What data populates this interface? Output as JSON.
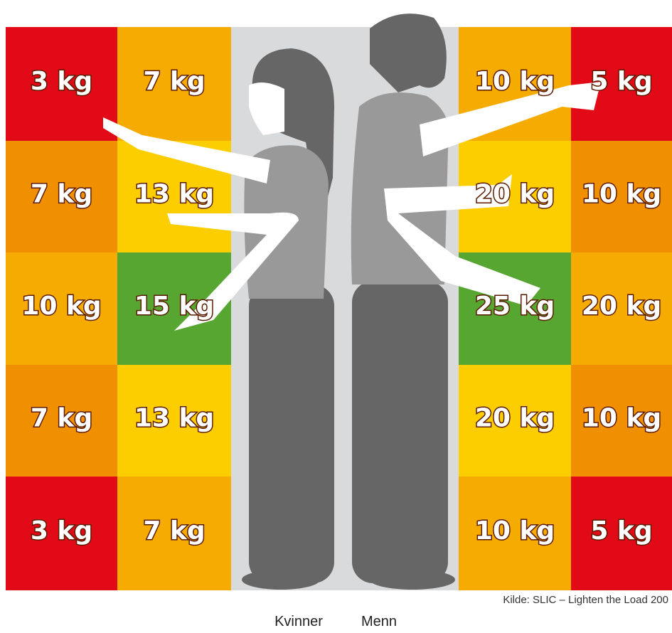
{
  "women": {
    "label": "Kvinner",
    "rows": [
      [
        {
          "text": "3 kg",
          "color": "#e30a17"
        },
        {
          "text": "7 kg",
          "color": "#f6ab00"
        }
      ],
      [
        {
          "text": "7 kg",
          "color": "#f08f00"
        },
        {
          "text": "13 kg",
          "color": "#fcce00"
        }
      ],
      [
        {
          "text": "10 kg",
          "color": "#f6ab00"
        },
        {
          "text": "15 kg",
          "color": "#58a632"
        }
      ],
      [
        {
          "text": "7 kg",
          "color": "#f08f00"
        },
        {
          "text": "13 kg",
          "color": "#fcce00"
        }
      ],
      [
        {
          "text": "3 kg",
          "color": "#e30a17"
        },
        {
          "text": "7 kg",
          "color": "#f6ab00"
        }
      ]
    ]
  },
  "men": {
    "label": "Menn",
    "rows": [
      [
        {
          "text": "10 kg",
          "color": "#f6ab00"
        },
        {
          "text": "5 kg",
          "color": "#e30a17"
        }
      ],
      [
        {
          "text": "20 kg",
          "color": "#fcce00"
        },
        {
          "text": "10 kg",
          "color": "#f08f00"
        }
      ],
      [
        {
          "text": "25 kg",
          "color": "#58a632"
        },
        {
          "text": "20 kg",
          "color": "#f6ab00"
        }
      ],
      [
        {
          "text": "20 kg",
          "color": "#fcce00"
        },
        {
          "text": "10 kg",
          "color": "#f08f00"
        }
      ],
      [
        {
          "text": "10 kg",
          "color": "#f6ab00"
        },
        {
          "text": "5 kg",
          "color": "#e30a17"
        }
      ]
    ]
  },
  "source": "Kilde: SLIC – Lighten the Load 200"
}
